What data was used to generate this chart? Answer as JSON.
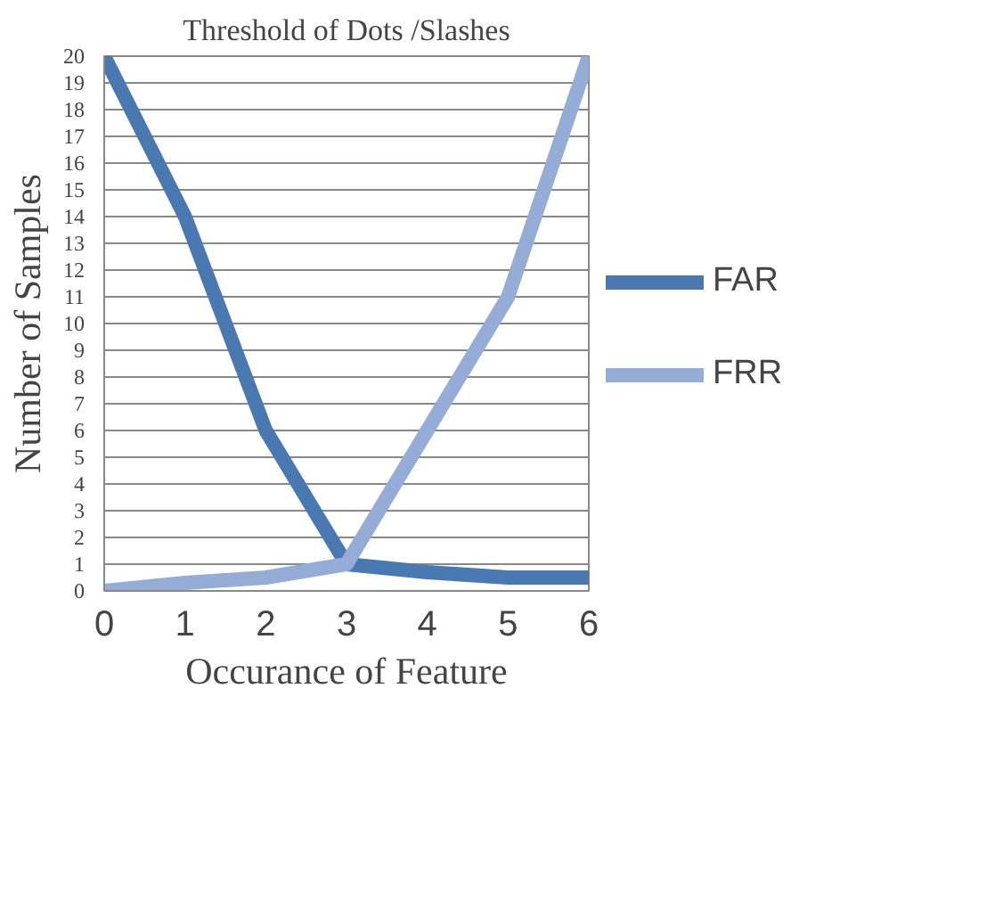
{
  "chart_data": {
    "type": "line",
    "title": "Threshold of Dots /Slashes",
    "xlabel": "Occurance of Feature",
    "ylabel": "Number of Samples",
    "x": [
      0,
      1,
      2,
      3,
      4,
      5,
      6
    ],
    "series": [
      {
        "name": "FAR",
        "color": "#4a78b0",
        "values": [
          20,
          14,
          6,
          1,
          0.7,
          0.5,
          0.5
        ]
      },
      {
        "name": "FRR",
        "color": "#94acd6",
        "values": [
          0,
          0.3,
          0.5,
          1,
          6,
          11,
          20
        ]
      }
    ],
    "xlim": [
      0,
      6
    ],
    "xticks": [
      0,
      1,
      2,
      3,
      4,
      5,
      6
    ],
    "ylim": [
      0,
      20
    ],
    "yticks": [
      0,
      1,
      2,
      3,
      4,
      5,
      6,
      7,
      8,
      9,
      10,
      11,
      12,
      13,
      14,
      15,
      16,
      17,
      18,
      19,
      20
    ],
    "grid": "y",
    "legend": "right",
    "marker": "none",
    "line_style": "solid"
  }
}
